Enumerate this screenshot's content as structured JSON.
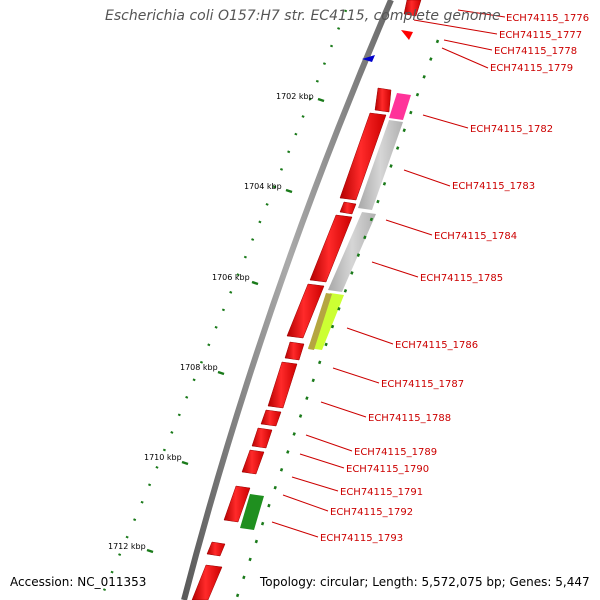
{
  "title": "Escherichia coli O157:H7 str. EC4115, complete genome",
  "accession": "Accession: NC_011353",
  "topology": "Topology: circular; Length: 5,572,075 bp; Genes: 5,447",
  "colors": {
    "gene_forward": "#ff0000",
    "gene_reverse": "#ff0000",
    "label": "#cc0000",
    "tick": "#1a7a1a",
    "backbone": "#888888",
    "gray_feature": "#c0c0c0",
    "pink_feature": "#ff3399",
    "lime_feature": "#ccff33",
    "olive_feature": "#b5a640",
    "green_feature": "#1f8f1f",
    "blue_feature": "#0000cc"
  },
  "scale_labels": [
    "1702 kbp",
    "1704 kbp",
    "1706 kbp",
    "1708 kbp",
    "1710 kbp",
    "1712 kbp"
  ],
  "genes": [
    "ECH74115_1776",
    "ECH74115_1777",
    "ECH74115_1778",
    "ECH74115_1779",
    "ECH74115_1782",
    "ECH74115_1783",
    "ECH74115_1784",
    "ECH74115_1785",
    "ECH74115_1786",
    "ECH74115_1787",
    "ECH74115_1788",
    "ECH74115_1789",
    "ECH74115_1790",
    "ECH74115_1791",
    "ECH74115_1792",
    "ECH74115_1793"
  ]
}
